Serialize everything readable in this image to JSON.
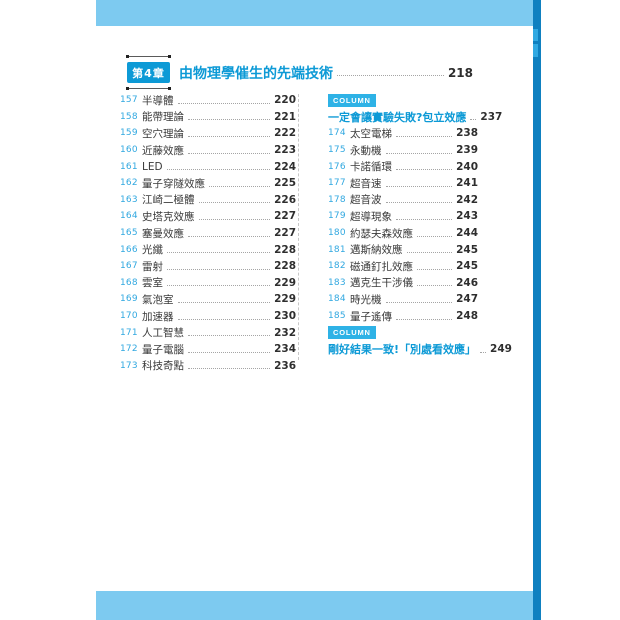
{
  "page": {
    "chapter": {
      "badge": "第4章",
      "title": "由物理學催生的先端技術",
      "page": "218"
    },
    "left_items": [
      {
        "no": "157",
        "title": "半導體",
        "page": "220"
      },
      {
        "no": "158",
        "title": "能帶理論",
        "page": "221"
      },
      {
        "no": "159",
        "title": "空穴理論",
        "page": "222"
      },
      {
        "no": "160",
        "title": "近藤效應",
        "page": "223"
      },
      {
        "no": "161",
        "title": "LED",
        "page": "224"
      },
      {
        "no": "162",
        "title": "量子穿隧效應",
        "page": "225"
      },
      {
        "no": "163",
        "title": "江崎二極體",
        "page": "226"
      },
      {
        "no": "164",
        "title": "史塔克效應",
        "page": "227"
      },
      {
        "no": "165",
        "title": "塞曼效應",
        "page": "227"
      },
      {
        "no": "166",
        "title": "光纖",
        "page": "228"
      },
      {
        "no": "167",
        "title": "雷射",
        "page": "228"
      },
      {
        "no": "168",
        "title": "雲室",
        "page": "229"
      },
      {
        "no": "169",
        "title": "氣泡室",
        "page": "229"
      },
      {
        "no": "170",
        "title": "加速器",
        "page": "230"
      },
      {
        "no": "171",
        "title": "人工智慧",
        "page": "232"
      },
      {
        "no": "172",
        "title": "量子電腦",
        "page": "234"
      },
      {
        "no": "173",
        "title": "科技奇點",
        "page": "236"
      }
    ],
    "right_rows": [
      {
        "type": "badge",
        "label": "COLUMN"
      },
      {
        "type": "column-title",
        "title": "一定會讓實驗失敗?包立效應",
        "page": "237"
      },
      {
        "type": "item",
        "no": "174",
        "title": "太空電梯",
        "page": "238"
      },
      {
        "type": "item",
        "no": "175",
        "title": "永動機",
        "page": "239"
      },
      {
        "type": "item",
        "no": "176",
        "title": "卡諾循環",
        "page": "240"
      },
      {
        "type": "item",
        "no": "177",
        "title": "超音速",
        "page": "241"
      },
      {
        "type": "item",
        "no": "178",
        "title": "超音波",
        "page": "242"
      },
      {
        "type": "item",
        "no": "179",
        "title": "超導現象",
        "page": "243"
      },
      {
        "type": "item",
        "no": "180",
        "title": "約瑟夫森效應",
        "page": "244"
      },
      {
        "type": "item",
        "no": "181",
        "title": "邁斯納效應",
        "page": "245"
      },
      {
        "type": "item",
        "no": "182",
        "title": "磁通釘扎效應",
        "page": "245"
      },
      {
        "type": "item",
        "no": "183",
        "title": "邁克生干涉儀",
        "page": "246"
      },
      {
        "type": "item",
        "no": "184",
        "title": "時光機",
        "page": "247"
      },
      {
        "type": "item",
        "no": "185",
        "title": "量子遙傳",
        "page": "248"
      },
      {
        "type": "badge",
        "label": "COLUMN"
      },
      {
        "type": "column-title",
        "title": "剛好結果一致!「別處看效應」",
        "page": "249"
      }
    ],
    "colors": {
      "band_light_blue": "#7dcaf0",
      "spine_dark_blue": "#0f80c0",
      "accent_blue": "#0d9ad6",
      "number_blue": "#31a8e0",
      "column_badge_blue": "#2eb2e6",
      "text_dark": "#3a3a3a"
    }
  }
}
